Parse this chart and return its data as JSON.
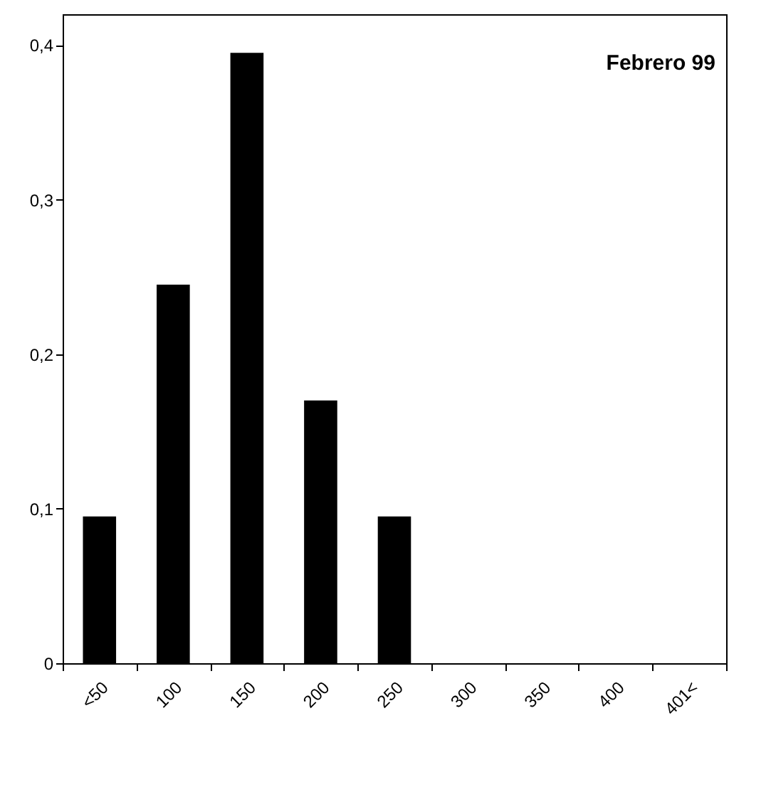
{
  "chart_data": {
    "type": "bar",
    "title": "Febrero 99",
    "categories": [
      "<50",
      "100",
      "150",
      "200",
      "250",
      "300",
      "350",
      "400",
      "401<"
    ],
    "values": [
      0.095,
      0.245,
      0.395,
      0.17,
      0.095,
      0,
      0,
      0,
      0
    ],
    "color": "#000000",
    "ylim": [
      0,
      0.42
    ],
    "yticks": [
      {
        "value": 0,
        "label": "0"
      },
      {
        "value": 0.1,
        "label": "0,1"
      },
      {
        "value": 0.2,
        "label": "0,2"
      },
      {
        "value": 0.3,
        "label": "0,3"
      },
      {
        "value": 0.4,
        "label": "0,4"
      }
    ],
    "grid": false
  }
}
